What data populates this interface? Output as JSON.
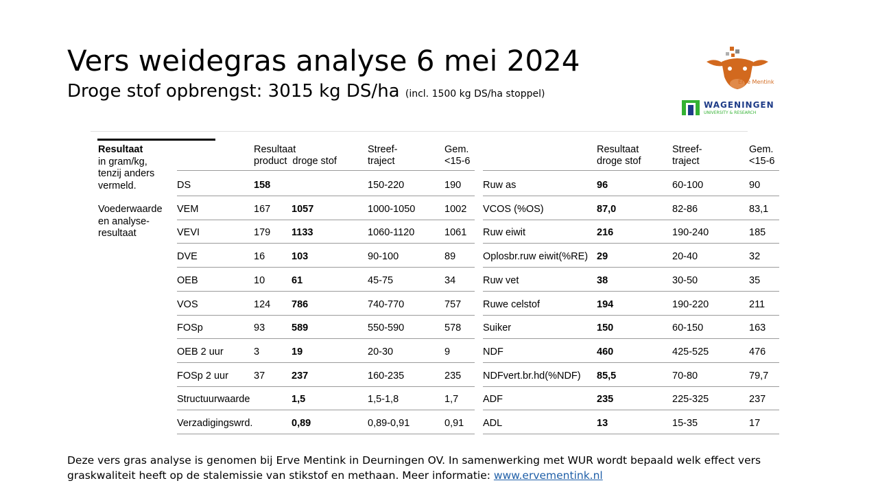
{
  "title": "Vers weidegras analyse 6 mei 2024",
  "subtitle": {
    "main": "Droge stof opbrengst: 3015 kg DS/ha",
    "note": "(incl. 1500 kg DS/ha stoppel)"
  },
  "logos": {
    "erve_mentink": "Erve Mentink",
    "wur_line1": "WAGENINGEN",
    "wur_line2": "UNIVERSITY & RESEARCH"
  },
  "sidebar": {
    "head": "Resultaat",
    "lines": [
      "in gram/kg,",
      "tenzij anders",
      "vermeld."
    ],
    "section": [
      "Voederwaarde",
      "en analyse-",
      "resultaat"
    ]
  },
  "left_table": {
    "headers": {
      "result": [
        "Resultaat",
        "product  droge stof"
      ],
      "target": [
        "Streef-",
        "traject"
      ],
      "avg": [
        "Gem.",
        "<15-6"
      ]
    },
    "rows": [
      {
        "name": "DS",
        "product": "158",
        "ds": "",
        "target": "150-220",
        "avg": "190",
        "product_bold": true
      },
      {
        "name": "VEM",
        "product": "167",
        "ds": "1057",
        "target": "1000-1050",
        "avg": "1002"
      },
      {
        "name": "VEVI",
        "product": "179",
        "ds": "1133",
        "target": "1060-1120",
        "avg": "1061"
      },
      {
        "name": "DVE",
        "product": "16",
        "ds": "103",
        "target": "90-100",
        "avg": "89"
      },
      {
        "name": "OEB",
        "product": "10",
        "ds": "61",
        "target": "45-75",
        "avg": "34"
      },
      {
        "name": "VOS",
        "product": "124",
        "ds": "786",
        "target": "740-770",
        "avg": "757"
      },
      {
        "name": "FOSp",
        "product": "93",
        "ds": "589",
        "target": "550-590",
        "avg": "578"
      },
      {
        "name": "OEB 2 uur",
        "product": "3",
        "ds": "19",
        "target": "20-30",
        "avg": "9"
      },
      {
        "name": "FOSp 2 uur",
        "product": "37",
        "ds": "237",
        "target": "160-235",
        "avg": "235"
      },
      {
        "name": "Structuurwaarde",
        "product": "",
        "ds": "1,5",
        "target": "1,5-1,8",
        "avg": "1,7"
      },
      {
        "name": "Verzadigingswrd.",
        "product": "",
        "ds": "0,89",
        "target": "0,89-0,91",
        "avg": "0,91"
      }
    ]
  },
  "right_table": {
    "headers": {
      "result": [
        "Resultaat",
        "droge stof"
      ],
      "target": [
        "Streef-",
        "traject"
      ],
      "avg": [
        "Gem.",
        "<15-6"
      ]
    },
    "rows": [
      {
        "name": "Ruw as",
        "ds": "96",
        "target": "60-100",
        "avg": "90"
      },
      {
        "name": "VCOS (%OS)",
        "ds": "87,0",
        "target": "82-86",
        "avg": "83,1"
      },
      {
        "name": "Ruw eiwit",
        "ds": "216",
        "target": "190-240",
        "avg": "185"
      },
      {
        "name": "Oplosbr.ruw eiwit(%RE)",
        "ds": "29",
        "target": "20-40",
        "avg": "32"
      },
      {
        "name": "Ruw vet",
        "ds": "38",
        "target": "30-50",
        "avg": "35"
      },
      {
        "name": "Ruwe celstof",
        "ds": "194",
        "target": "190-220",
        "avg": "211"
      },
      {
        "name": "Suiker",
        "ds": "150",
        "target": "60-150",
        "avg": "163"
      },
      {
        "name": "NDF",
        "ds": "460",
        "target": "425-525",
        "avg": "476"
      },
      {
        "name": "NDFvert.br.hd(%NDF)",
        "ds": "85,5",
        "target": "70-80",
        "avg": "79,7"
      },
      {
        "name": "ADF",
        "ds": "235",
        "target": "225-325",
        "avg": "237"
      },
      {
        "name": "ADL",
        "ds": "13",
        "target": "15-35",
        "avg": "17"
      }
    ]
  },
  "footer": {
    "text": "Deze vers gras analyse is genomen bij Erve Mentink in Deurningen OV. In samenwerking met WUR wordt bepaald welk effect vers graskwaliteit heeft op de stalemissie van stikstof en methaan. Meer informatie: ",
    "link": "www.ervementink.nl"
  },
  "colors": {
    "cow": "#d2691e",
    "wur_green": "#34b233",
    "wur_blue": "#1f3c88",
    "link": "#1f5fa8"
  }
}
